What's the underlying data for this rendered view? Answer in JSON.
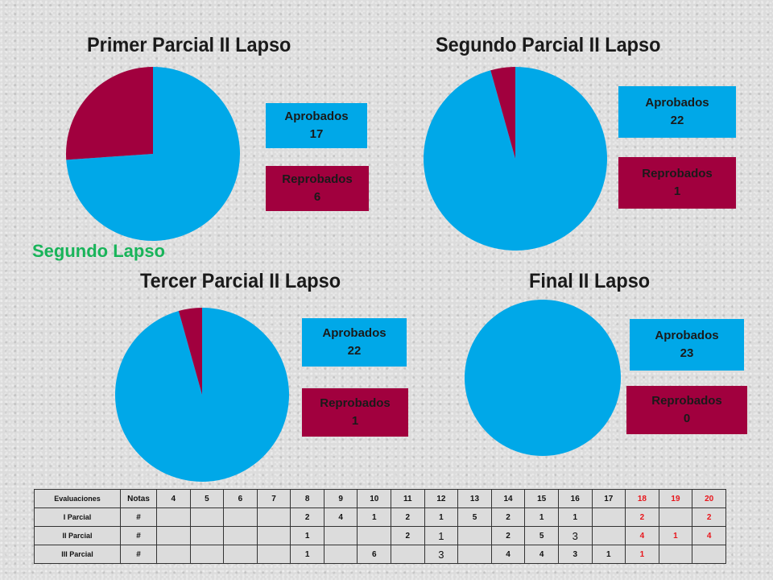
{
  "section_label": "Segundo Lapso",
  "colors": {
    "approved": "#00a8e8",
    "failed": "#a1003e",
    "red_text": "#e8151b",
    "lapso_green": "#19b45a"
  },
  "chart_data": [
    {
      "type": "pie",
      "title": "Primer Parcial II Lapso",
      "labels": [
        "Aprobados",
        "Reprobados"
      ],
      "values": [
        17,
        6
      ]
    },
    {
      "type": "pie",
      "title": "Segundo Parcial II Lapso",
      "labels": [
        "Aprobados",
        "Reprobados"
      ],
      "values": [
        22,
        1
      ]
    },
    {
      "type": "pie",
      "title": "Tercer Parcial II Lapso",
      "labels": [
        "Aprobados",
        "Reprobados"
      ],
      "values": [
        22,
        1
      ]
    },
    {
      "type": "pie",
      "title": "Final II Lapso",
      "labels": [
        "Aprobados",
        "Reprobados"
      ],
      "values": [
        23,
        0
      ]
    }
  ],
  "table": {
    "corner": "Evaluaciones",
    "notas_label": "Notas",
    "grades": [
      "4",
      "5",
      "6",
      "7",
      "8",
      "9",
      "10",
      "11",
      "12",
      "13",
      "14",
      "15",
      "16",
      "17",
      "18",
      "19",
      "20"
    ],
    "rows": [
      {
        "label": "I Parcial",
        "marker": "#",
        "cells": [
          "",
          "",
          "",
          "",
          "2",
          "4",
          "1",
          "2",
          "1",
          "5",
          "2",
          "1",
          "1",
          "",
          "2",
          "",
          "2"
        ]
      },
      {
        "label": "II Parcial",
        "marker": "#",
        "cells": [
          "",
          "",
          "",
          "",
          "1",
          "",
          "",
          "2",
          "1",
          "",
          "2",
          "5",
          "3",
          "",
          "4",
          "1",
          "4"
        ]
      },
      {
        "label": "III Parcial",
        "marker": "#",
        "cells": [
          "",
          "",
          "",
          "",
          "1",
          "",
          "6",
          "",
          "3",
          "",
          "4",
          "4",
          "3",
          "1",
          "1",
          "",
          ""
        ]
      }
    ]
  }
}
